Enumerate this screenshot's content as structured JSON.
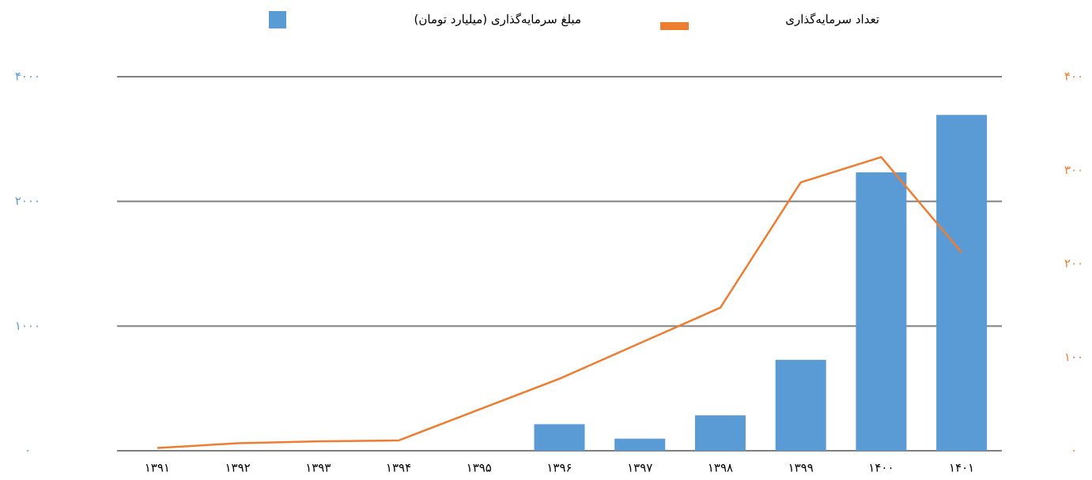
{
  "chart_data": {
    "type": "bar-line",
    "categories": [
      "۱۳۹۱",
      "۱۳۹۲",
      "۱۳۹۳",
      "۱۳۹۴",
      "۱۳۹۵",
      "۱۳۹۶",
      "۱۳۹۷",
      "۱۳۹۸",
      "۱۳۹۹",
      "۱۴۰۰",
      "۱۴۰۱"
    ],
    "series": [
      {
        "name": "مبلغ سرمایه‌گذاری (میلیارد تومان)",
        "type": "bar",
        "color": "#5b9bd5",
        "axis": "y",
        "values": [
          null,
          null,
          null,
          null,
          null,
          213,
          97,
          284,
          729,
          2466,
          3387
        ]
      },
      {
        "name": "تعداد سرمایه‌گذاری",
        "type": "line",
        "color": "#ed7d31",
        "axis": "y2",
        "values": [
          3,
          8,
          10,
          11,
          44,
          77,
          115,
          153,
          287,
          314,
          212
        ]
      }
    ],
    "ylim": [
      0,
      4000
    ],
    "yticks": [
      {
        "value": 0,
        "label": "۰"
      },
      {
        "value": 1000,
        "label": "۱۰۰۰"
      },
      {
        "value": 2000,
        "label": "۲۰۰۰"
      },
      {
        "value": 4000,
        "label": "۴۰۰۰"
      }
    ],
    "y2lim": [
      0,
      400
    ],
    "y2ticks": [
      {
        "value": 0,
        "label": "۰"
      },
      {
        "value": 100,
        "label": "۱۰۰"
      },
      {
        "value": 200,
        "label": "۲۰۰"
      },
      {
        "value": 300,
        "label": "۳۰۰"
      },
      {
        "value": 400,
        "label": "۴۰۰"
      }
    ],
    "grid": true
  }
}
